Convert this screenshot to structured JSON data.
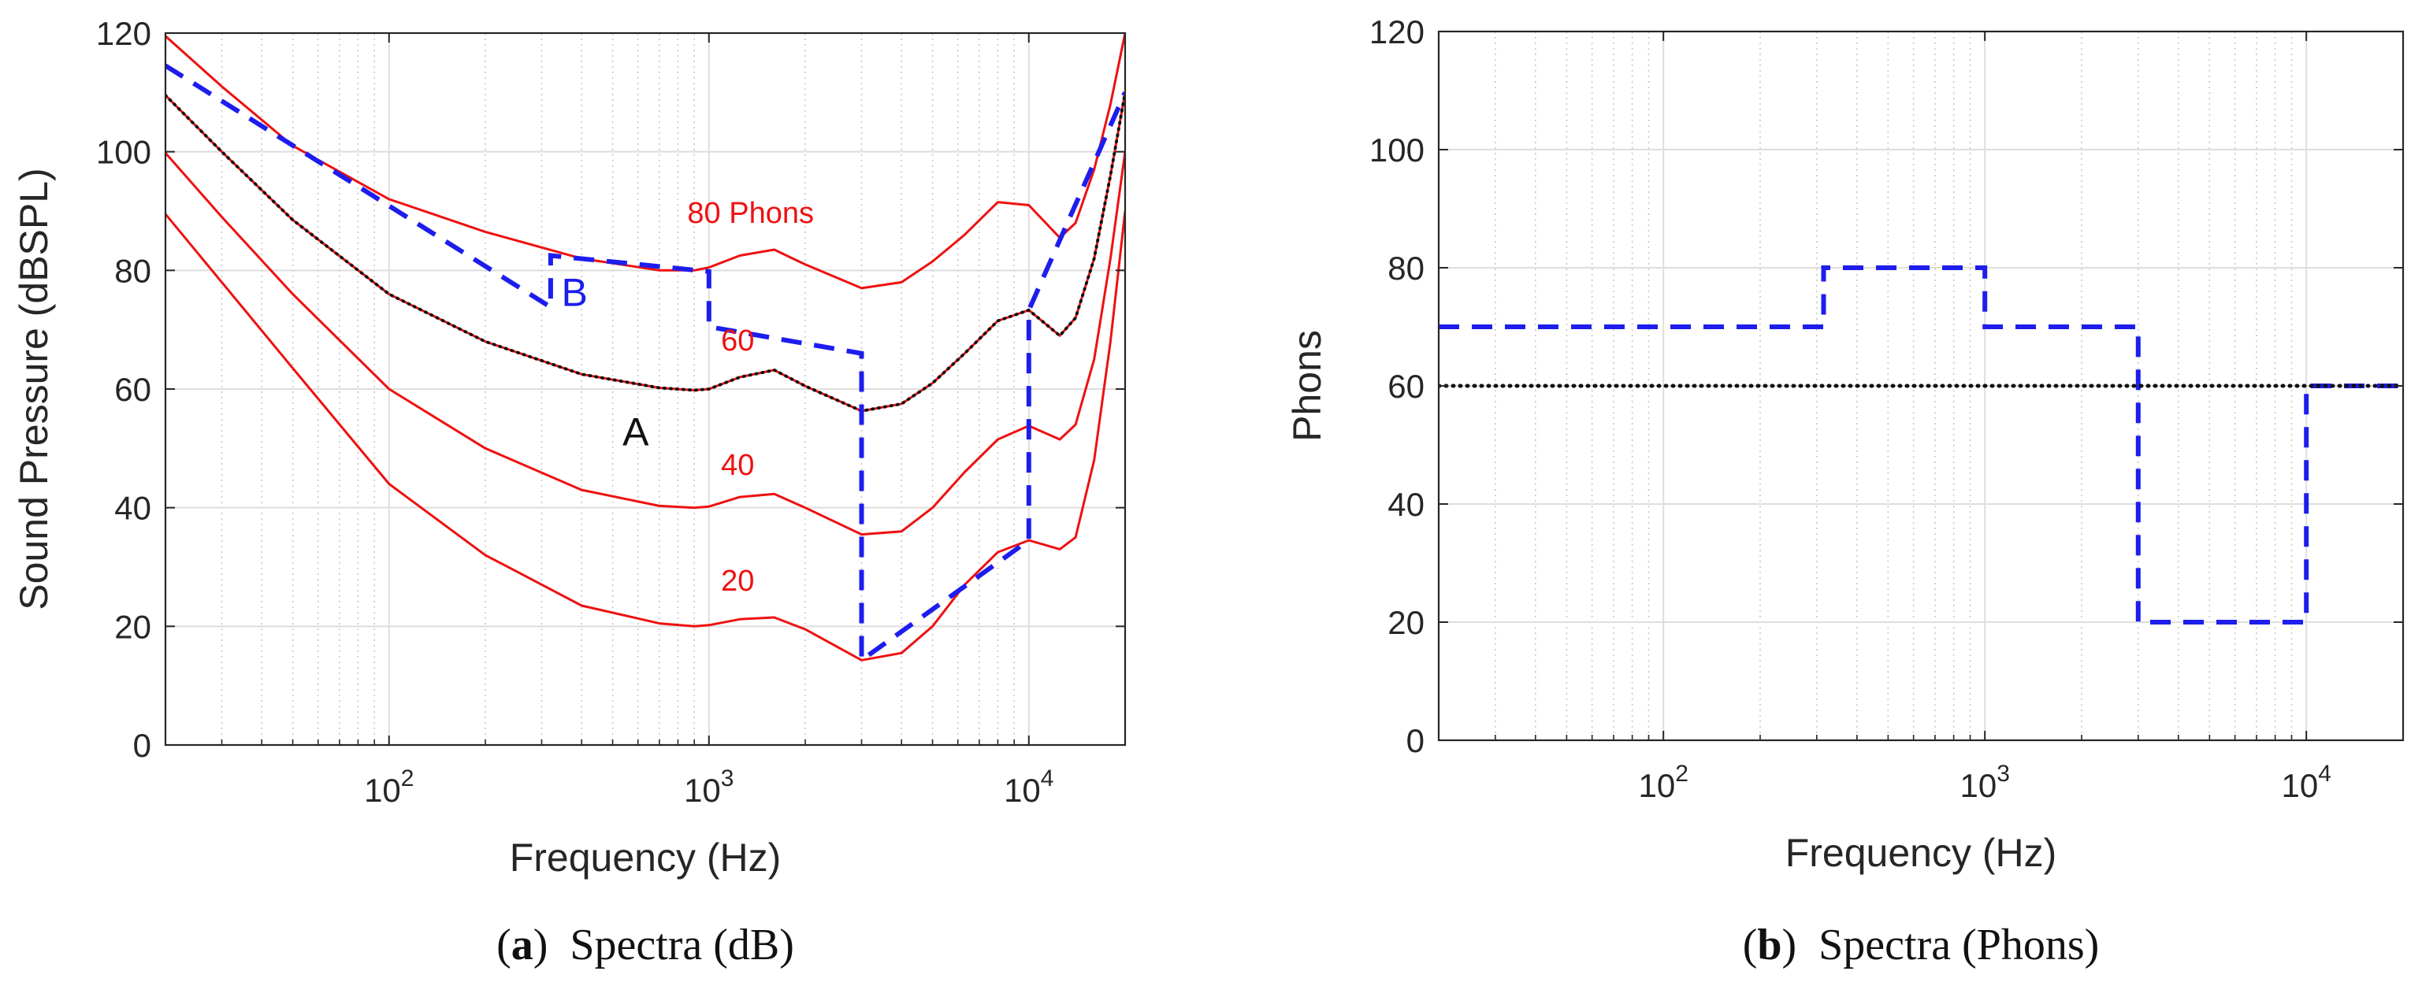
{
  "chart_data": [
    {
      "id": "a",
      "type": "line",
      "caption_letter": "a",
      "caption_text": "Spectra (dB)",
      "xlabel": "Frequency (Hz)",
      "ylabel": "Sound Pressure (dBSPL)",
      "xscale": "log",
      "xlim": [
        20,
        20000
      ],
      "ylim": [
        0,
        120
      ],
      "yticks": [
        0,
        20,
        40,
        60,
        80,
        100,
        120
      ],
      "xticks": [
        {
          "value": 100,
          "base": "10",
          "exp": "2"
        },
        {
          "value": 1000,
          "base": "10",
          "exp": "3"
        },
        {
          "value": 10000,
          "base": "10",
          "exp": "4"
        }
      ],
      "grid": true,
      "series": [
        {
          "name": "20 phon contour",
          "style": "solid",
          "color": "#ee1111",
          "x": [
            20,
            30,
            50,
            100,
            200,
            400,
            700,
            900,
            1000,
            1250,
            1600,
            2000,
            3000,
            4000,
            5000,
            6300,
            8000,
            10000,
            12500,
            14000,
            16000,
            18000,
            20000
          ],
          "y": [
            89.5,
            78,
            63.5,
            44,
            32,
            23.5,
            20.5,
            20,
            20.2,
            21.2,
            21.5,
            19.5,
            14.3,
            15.5,
            20,
            27,
            32.5,
            34.5,
            33,
            35,
            48,
            68,
            90
          ]
        },
        {
          "name": "40 phon contour",
          "style": "solid",
          "color": "#ee1111",
          "x": [
            20,
            30,
            50,
            100,
            200,
            400,
            700,
            900,
            1000,
            1250,
            1600,
            2000,
            3000,
            4000,
            5000,
            6300,
            8000,
            10000,
            12500,
            14000,
            16000,
            18000,
            20000
          ],
          "y": [
            99.8,
            89,
            76,
            60,
            50,
            43,
            40.3,
            40,
            40.2,
            41.8,
            42.3,
            40,
            35.5,
            36,
            40,
            46,
            51.5,
            53.8,
            51.5,
            54,
            65,
            82,
            100
          ]
        },
        {
          "name": "60 phon contour (A)",
          "style": "solid+dotted",
          "color": "#ee1111",
          "x": [
            20,
            30,
            50,
            100,
            200,
            400,
            700,
            900,
            1000,
            1250,
            1600,
            2000,
            3000,
            4000,
            5000,
            6300,
            8000,
            10000,
            12500,
            14000,
            16000,
            18000,
            20000
          ],
          "y": [
            109.5,
            100,
            88.5,
            76,
            68,
            62.5,
            60.2,
            59.8,
            60,
            62,
            63.2,
            60.5,
            56.3,
            57.5,
            61,
            66,
            71.5,
            73.3,
            69,
            72,
            82,
            96,
            110
          ]
        },
        {
          "name": "80 phon contour",
          "style": "solid",
          "color": "#ee1111",
          "x": [
            20,
            30,
            50,
            100,
            200,
            400,
            700,
            900,
            1000,
            1250,
            1600,
            2000,
            3000,
            4000,
            5000,
            6300,
            8000,
            10000,
            12500,
            14000,
            16000,
            18000,
            20000
          ],
          "y": [
            119.5,
            111,
            101,
            92,
            86.5,
            82,
            80,
            80,
            80.5,
            82.5,
            83.5,
            81,
            77,
            78,
            81.5,
            86,
            91.5,
            91,
            85.5,
            88,
            97,
            108,
            120
          ]
        },
        {
          "name": "B",
          "style": "dashed",
          "color": "#1d1dee",
          "x": [
            20,
            320,
            320,
            1000,
            1000,
            3000,
            3000,
            10000,
            10000,
            20000
          ],
          "y": [
            114.5,
            73.8,
            82.5,
            79.8,
            70.5,
            66,
            14.3,
            34.5,
            73.3,
            110
          ]
        }
      ],
      "annotations": [
        {
          "text": "80 Phons",
          "color": "#ee1111",
          "x": 1350,
          "y": 88
        },
        {
          "text": "60",
          "color": "#ee1111",
          "x": 1230,
          "y": 66.5
        },
        {
          "text": "40",
          "color": "#ee1111",
          "x": 1230,
          "y": 45.5
        },
        {
          "text": "20",
          "color": "#ee1111",
          "x": 1230,
          "y": 26
        },
        {
          "text": "B",
          "color": "#1d1dee",
          "x": 380,
          "y": 74
        },
        {
          "text": "A",
          "color": "#111111",
          "x": 590,
          "y": 50.5
        }
      ]
    },
    {
      "id": "b",
      "type": "line",
      "caption_letter": "b",
      "caption_text": "Spectra (Phons)",
      "xlabel": "Frequency (Hz)",
      "ylabel": "Phons",
      "xscale": "log",
      "xlim": [
        20,
        20000
      ],
      "ylim": [
        0,
        120
      ],
      "yticks": [
        0,
        20,
        40,
        60,
        80,
        100,
        120
      ],
      "xticks": [
        {
          "value": 100,
          "base": "10",
          "exp": "2"
        },
        {
          "value": 1000,
          "base": "10",
          "exp": "3"
        },
        {
          "value": 10000,
          "base": "10",
          "exp": "4"
        }
      ],
      "grid": true,
      "series": [
        {
          "name": "B (phons)",
          "style": "dashed",
          "color": "#1d1dee",
          "x": [
            20,
            315,
            315,
            1000,
            1000,
            3000,
            3000,
            10000,
            10000,
            20000
          ],
          "y": [
            70,
            70,
            80,
            80,
            70,
            70,
            20,
            20,
            60,
            60
          ]
        },
        {
          "name": "A (phons)",
          "style": "dotted",
          "color": "#111111",
          "x": [
            20,
            20000
          ],
          "y": [
            60,
            60
          ]
        }
      ],
      "annotations": []
    }
  ]
}
